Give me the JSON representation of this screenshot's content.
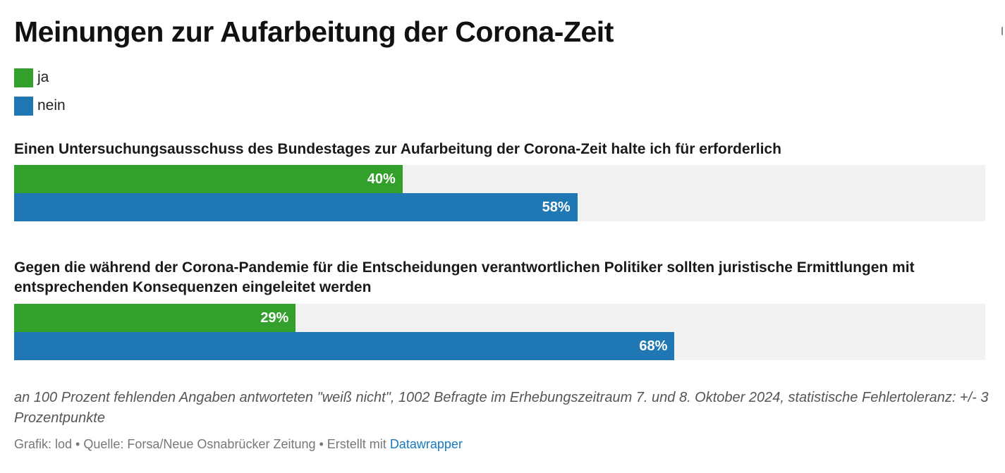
{
  "title": "Meinungen zur Aufarbeitung der Corona-Zeit",
  "legend": [
    {
      "label": "ja",
      "color": "#33a02c"
    },
    {
      "label": "nein",
      "color": "#1f78b4"
    }
  ],
  "chart_data": {
    "type": "bar",
    "orientation": "horizontal",
    "title": "Meinungen zur Aufarbeitung der Corona-Zeit",
    "xlim": [
      0,
      100
    ],
    "unit": "%",
    "legend_position": "top-left",
    "grid": false,
    "categories": [
      "Einen Untersuchungsausschuss des Bundestages zur Aufarbeitung der Corona-Zeit halte ich für erforderlich",
      "Gegen die während der Corona-Pandemie für die Entscheidungen verantwortlichen Politiker sollten juristische Ermittlungen mit entsprechenden Konsequenzen eingeleitet werden"
    ],
    "series": [
      {
        "name": "ja",
        "color": "#33a02c",
        "values": [
          40,
          29
        ],
        "labels": [
          "40%",
          "29%"
        ]
      },
      {
        "name": "nein",
        "color": "#1f78b4",
        "values": [
          58,
          68
        ],
        "labels": [
          "58%",
          "68%"
        ]
      }
    ]
  },
  "note": "an 100 Prozent fehlenden Angaben antworteten \"weiß nicht\", 1002 Befragte im Erhebungszeitraum 7. und 8. Oktober 2024, statistische Fehlertoleranz: +/- 3 Prozentpunkte",
  "footer": {
    "credit": "Grafik: lod • Quelle: Forsa/Neue Osnabrücker Zeitung • Erstellt mit ",
    "link_label": "Datawrapper"
  }
}
